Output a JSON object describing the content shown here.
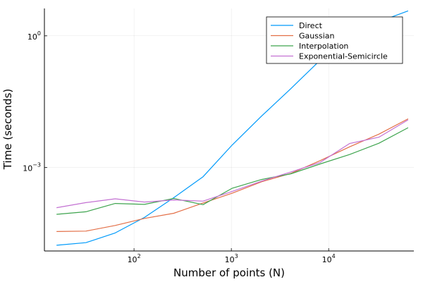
{
  "chart_data": {
    "type": "line",
    "title": "",
    "xlabel": "Number of points (N)",
    "ylabel": "Time (seconds)",
    "xscale": "log10",
    "yscale": "log10",
    "xlim": [
      12,
      75000
    ],
    "ylim": [
      1.26e-05,
      4.2
    ],
    "xticks": [
      {
        "value": 100,
        "mantissa": "10",
        "exp": "2"
      },
      {
        "value": 1000,
        "mantissa": "10",
        "exp": "3"
      },
      {
        "value": 10000,
        "mantissa": "10",
        "exp": "4"
      }
    ],
    "yticks": [
      {
        "value": 0.001,
        "mantissa": "10",
        "exp": "−3"
      },
      {
        "value": 1,
        "mantissa": "10",
        "exp": "0"
      }
    ],
    "grid": true,
    "legend_position": "top-right",
    "x": [
      16,
      32,
      64,
      128,
      256,
      512,
      1024,
      2048,
      4096,
      8192,
      16384,
      32768,
      65536
    ],
    "series": [
      {
        "name": "Direct",
        "color": "#009AFA",
        "values": [
          1.7e-05,
          1.95e-05,
          3.25e-05,
          7.31e-05,
          0.000206,
          0.000617,
          0.0033,
          0.0149,
          0.063,
          0.28,
          1.2,
          2.1,
          3.7
        ]
      },
      {
        "name": "Gaussian",
        "color": "#E36F47",
        "values": [
          3.5e-05,
          3.58e-05,
          4.81e-05,
          6.96e-05,
          9.12e-05,
          0.000156,
          0.000262,
          0.000475,
          0.000738,
          0.00144,
          0.00296,
          0.00577,
          0.0129
        ]
      },
      {
        "name": "Interpolation",
        "color": "#3EA44E",
        "values": [
          8.62e-05,
          9.85e-05,
          0.000152,
          0.000145,
          0.000198,
          0.000143,
          0.000339,
          0.000535,
          0.000723,
          0.00121,
          0.00198,
          0.00358,
          0.0081
        ]
      },
      {
        "name": "Exponential-Semicircle",
        "color": "#C371D2",
        "values": [
          0.000122,
          0.000159,
          0.000194,
          0.000164,
          0.000183,
          0.000172,
          0.000288,
          0.000491,
          0.000794,
          0.00131,
          0.00353,
          0.00491,
          0.0122
        ]
      }
    ]
  }
}
